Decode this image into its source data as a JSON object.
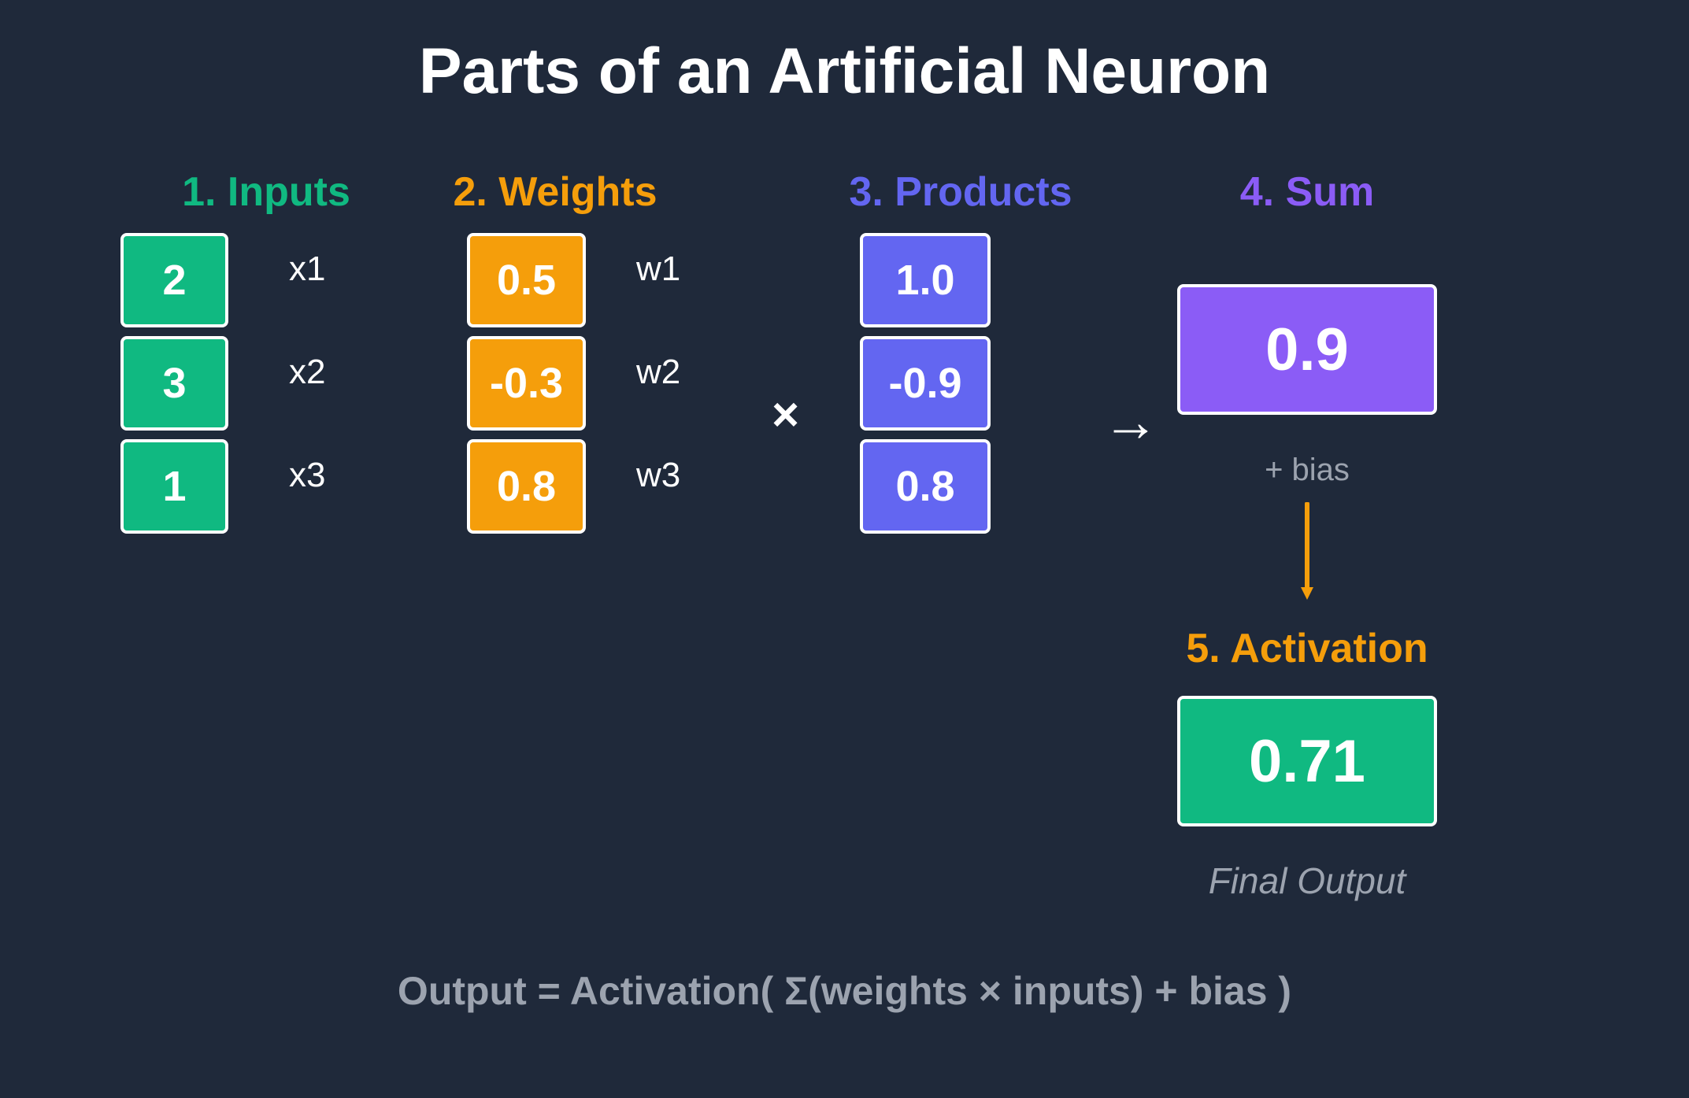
{
  "title": "Parts of an Artificial Neuron",
  "sections": {
    "inputs": {
      "heading": "1. Inputs",
      "color": "#10b981",
      "items": [
        {
          "value": "2",
          "label": "x1"
        },
        {
          "value": "3",
          "label": "x2"
        },
        {
          "value": "1",
          "label": "x3"
        }
      ]
    },
    "weights": {
      "heading": "2. Weights",
      "color": "#f59e0b",
      "items": [
        {
          "value": "0.5",
          "label": "w1"
        },
        {
          "value": "-0.3",
          "label": "w2"
        },
        {
          "value": "0.8",
          "label": "w3"
        }
      ]
    },
    "products": {
      "heading": "3. Products",
      "color": "#6366f1",
      "operator": "×",
      "items": [
        {
          "value": "1.0"
        },
        {
          "value": "-0.9"
        },
        {
          "value": "0.8"
        }
      ]
    },
    "sum": {
      "heading": "4. Sum",
      "color": "#8b5cf6",
      "arrow": "→",
      "value": "0.9",
      "bias_label": "+ bias"
    },
    "activation": {
      "heading": "5. Activation",
      "color": "#f59e0b",
      "value": "0.71",
      "box_color": "#10b981",
      "caption": "Final Output"
    }
  },
  "formula": "Output = Activation( Σ(weights × inputs) + bias )"
}
